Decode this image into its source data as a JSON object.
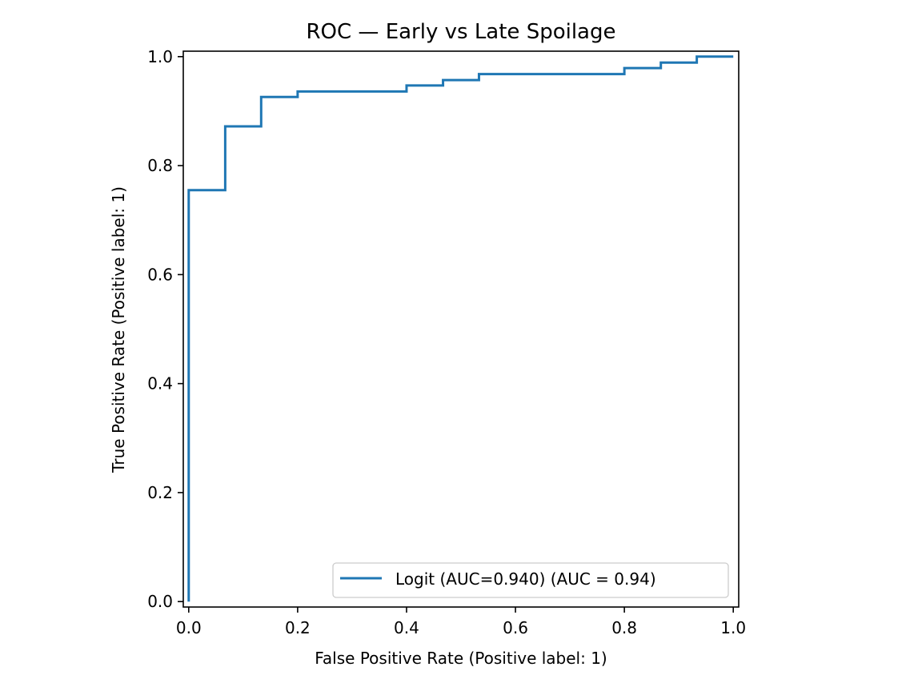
{
  "chart_data": {
    "type": "line",
    "title": "ROC — Early vs Late Spoilage",
    "xlabel": "False Positive Rate (Positive label: 1)",
    "ylabel": "True Positive Rate (Positive label: 1)",
    "xlim": [
      -0.01,
      1.01
    ],
    "ylim": [
      -0.01,
      1.01
    ],
    "xticks": [
      0.0,
      0.2,
      0.4,
      0.6,
      0.8,
      1.0
    ],
    "yticks": [
      0.0,
      0.2,
      0.4,
      0.6,
      0.8,
      1.0
    ],
    "xtick_labels": [
      "0.0",
      "0.2",
      "0.4",
      "0.6",
      "0.8",
      "1.0"
    ],
    "ytick_labels": [
      "0.0",
      "0.2",
      "0.4",
      "0.6",
      "0.8",
      "1.0"
    ],
    "grid": false,
    "legend_position": "lower-right",
    "series": [
      {
        "name": "Logit (AUC=0.940) (AUC = 0.94)",
        "color": "#1f77b4",
        "x": [
          0.0,
          0.0,
          0.067,
          0.067,
          0.133,
          0.133,
          0.2,
          0.2,
          0.4,
          0.4,
          0.467,
          0.467,
          0.533,
          0.533,
          0.8,
          0.8,
          0.867,
          0.867,
          0.933,
          0.933,
          1.0
        ],
        "y": [
          0.0,
          0.755,
          0.755,
          0.872,
          0.872,
          0.926,
          0.926,
          0.936,
          0.936,
          0.947,
          0.947,
          0.957,
          0.957,
          0.968,
          0.968,
          0.979,
          0.979,
          0.989,
          0.989,
          1.0,
          1.0
        ]
      }
    ]
  }
}
